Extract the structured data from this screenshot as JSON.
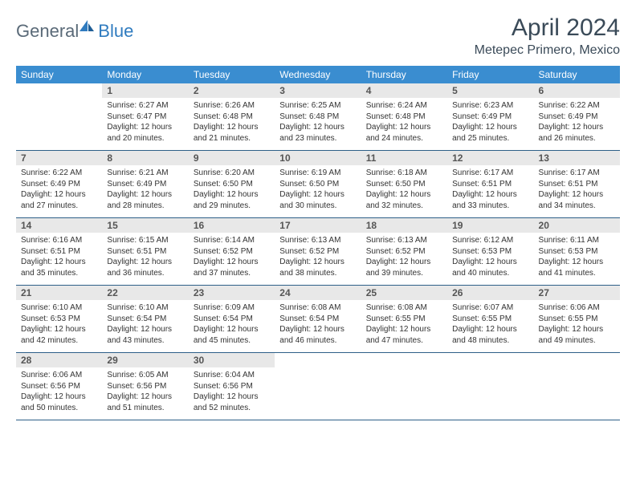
{
  "brand": {
    "part1": "General",
    "part2": "Blue"
  },
  "title": "April 2024",
  "location": "Metepec Primero, Mexico",
  "colors": {
    "header_bg": "#3a8dd0",
    "header_text": "#ffffff",
    "daynum_bg": "#e8e8e8",
    "row_border": "#2d5f88",
    "title_color": "#3a4a58",
    "logo_gray": "#5a6a78",
    "logo_blue": "#2f7bbf"
  },
  "weekdays": [
    "Sunday",
    "Monday",
    "Tuesday",
    "Wednesday",
    "Thursday",
    "Friday",
    "Saturday"
  ],
  "cells": [
    {
      "blank": true
    },
    {
      "day": "1",
      "sunrise": "Sunrise: 6:27 AM",
      "sunset": "Sunset: 6:47 PM",
      "daylight": "Daylight: 12 hours and 20 minutes."
    },
    {
      "day": "2",
      "sunrise": "Sunrise: 6:26 AM",
      "sunset": "Sunset: 6:48 PM",
      "daylight": "Daylight: 12 hours and 21 minutes."
    },
    {
      "day": "3",
      "sunrise": "Sunrise: 6:25 AM",
      "sunset": "Sunset: 6:48 PM",
      "daylight": "Daylight: 12 hours and 23 minutes."
    },
    {
      "day": "4",
      "sunrise": "Sunrise: 6:24 AM",
      "sunset": "Sunset: 6:48 PM",
      "daylight": "Daylight: 12 hours and 24 minutes."
    },
    {
      "day": "5",
      "sunrise": "Sunrise: 6:23 AM",
      "sunset": "Sunset: 6:49 PM",
      "daylight": "Daylight: 12 hours and 25 minutes."
    },
    {
      "day": "6",
      "sunrise": "Sunrise: 6:22 AM",
      "sunset": "Sunset: 6:49 PM",
      "daylight": "Daylight: 12 hours and 26 minutes."
    },
    {
      "day": "7",
      "sunrise": "Sunrise: 6:22 AM",
      "sunset": "Sunset: 6:49 PM",
      "daylight": "Daylight: 12 hours and 27 minutes."
    },
    {
      "day": "8",
      "sunrise": "Sunrise: 6:21 AM",
      "sunset": "Sunset: 6:49 PM",
      "daylight": "Daylight: 12 hours and 28 minutes."
    },
    {
      "day": "9",
      "sunrise": "Sunrise: 6:20 AM",
      "sunset": "Sunset: 6:50 PM",
      "daylight": "Daylight: 12 hours and 29 minutes."
    },
    {
      "day": "10",
      "sunrise": "Sunrise: 6:19 AM",
      "sunset": "Sunset: 6:50 PM",
      "daylight": "Daylight: 12 hours and 30 minutes."
    },
    {
      "day": "11",
      "sunrise": "Sunrise: 6:18 AM",
      "sunset": "Sunset: 6:50 PM",
      "daylight": "Daylight: 12 hours and 32 minutes."
    },
    {
      "day": "12",
      "sunrise": "Sunrise: 6:17 AM",
      "sunset": "Sunset: 6:51 PM",
      "daylight": "Daylight: 12 hours and 33 minutes."
    },
    {
      "day": "13",
      "sunrise": "Sunrise: 6:17 AM",
      "sunset": "Sunset: 6:51 PM",
      "daylight": "Daylight: 12 hours and 34 minutes."
    },
    {
      "day": "14",
      "sunrise": "Sunrise: 6:16 AM",
      "sunset": "Sunset: 6:51 PM",
      "daylight": "Daylight: 12 hours and 35 minutes."
    },
    {
      "day": "15",
      "sunrise": "Sunrise: 6:15 AM",
      "sunset": "Sunset: 6:51 PM",
      "daylight": "Daylight: 12 hours and 36 minutes."
    },
    {
      "day": "16",
      "sunrise": "Sunrise: 6:14 AM",
      "sunset": "Sunset: 6:52 PM",
      "daylight": "Daylight: 12 hours and 37 minutes."
    },
    {
      "day": "17",
      "sunrise": "Sunrise: 6:13 AM",
      "sunset": "Sunset: 6:52 PM",
      "daylight": "Daylight: 12 hours and 38 minutes."
    },
    {
      "day": "18",
      "sunrise": "Sunrise: 6:13 AM",
      "sunset": "Sunset: 6:52 PM",
      "daylight": "Daylight: 12 hours and 39 minutes."
    },
    {
      "day": "19",
      "sunrise": "Sunrise: 6:12 AM",
      "sunset": "Sunset: 6:53 PM",
      "daylight": "Daylight: 12 hours and 40 minutes."
    },
    {
      "day": "20",
      "sunrise": "Sunrise: 6:11 AM",
      "sunset": "Sunset: 6:53 PM",
      "daylight": "Daylight: 12 hours and 41 minutes."
    },
    {
      "day": "21",
      "sunrise": "Sunrise: 6:10 AM",
      "sunset": "Sunset: 6:53 PM",
      "daylight": "Daylight: 12 hours and 42 minutes."
    },
    {
      "day": "22",
      "sunrise": "Sunrise: 6:10 AM",
      "sunset": "Sunset: 6:54 PM",
      "daylight": "Daylight: 12 hours and 43 minutes."
    },
    {
      "day": "23",
      "sunrise": "Sunrise: 6:09 AM",
      "sunset": "Sunset: 6:54 PM",
      "daylight": "Daylight: 12 hours and 45 minutes."
    },
    {
      "day": "24",
      "sunrise": "Sunrise: 6:08 AM",
      "sunset": "Sunset: 6:54 PM",
      "daylight": "Daylight: 12 hours and 46 minutes."
    },
    {
      "day": "25",
      "sunrise": "Sunrise: 6:08 AM",
      "sunset": "Sunset: 6:55 PM",
      "daylight": "Daylight: 12 hours and 47 minutes."
    },
    {
      "day": "26",
      "sunrise": "Sunrise: 6:07 AM",
      "sunset": "Sunset: 6:55 PM",
      "daylight": "Daylight: 12 hours and 48 minutes."
    },
    {
      "day": "27",
      "sunrise": "Sunrise: 6:06 AM",
      "sunset": "Sunset: 6:55 PM",
      "daylight": "Daylight: 12 hours and 49 minutes."
    },
    {
      "day": "28",
      "sunrise": "Sunrise: 6:06 AM",
      "sunset": "Sunset: 6:56 PM",
      "daylight": "Daylight: 12 hours and 50 minutes."
    },
    {
      "day": "29",
      "sunrise": "Sunrise: 6:05 AM",
      "sunset": "Sunset: 6:56 PM",
      "daylight": "Daylight: 12 hours and 51 minutes."
    },
    {
      "day": "30",
      "sunrise": "Sunrise: 6:04 AM",
      "sunset": "Sunset: 6:56 PM",
      "daylight": "Daylight: 12 hours and 52 minutes."
    },
    {
      "blank": true
    },
    {
      "blank": true
    },
    {
      "blank": true
    },
    {
      "blank": true
    }
  ]
}
